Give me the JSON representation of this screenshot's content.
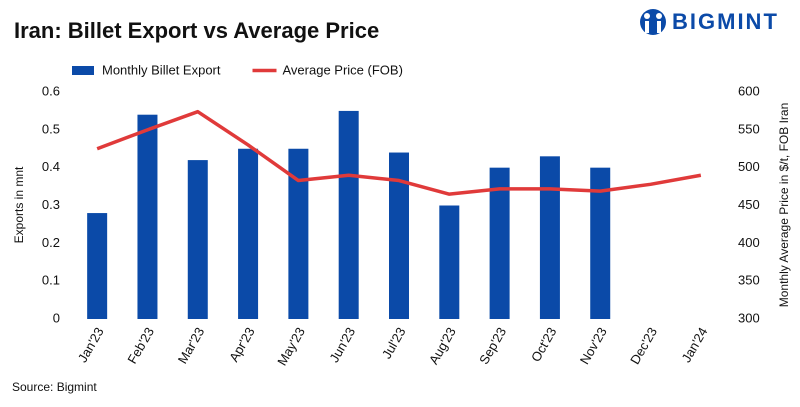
{
  "brand": "BIGMINT",
  "chart_data": {
    "type": "bar-line",
    "title": "Iran: Billet Export vs Average Price",
    "source": "Source: Bigmint",
    "y_label": "Exports in mnt",
    "y2_label": "Monthly Average Price in $/t, FOB Iran",
    "categories": [
      "Jan'23",
      "Feb'23",
      "Mar'23",
      "Apr'23",
      "May'23",
      "Jun'23",
      "Jul'23",
      "Aug'23",
      "Sep'23",
      "Oct'23",
      "Nov'23",
      "Dec'23",
      "Jan'24"
    ],
    "series": [
      {
        "name": "Monthly Billet Export",
        "type": "bar",
        "color": "#0b4aa8",
        "values": [
          0.28,
          0.54,
          0.42,
          0.45,
          0.45,
          0.55,
          0.44,
          0.3,
          0.4,
          0.43,
          0.4,
          null,
          null
        ]
      },
      {
        "name": "Average Price (FOB)",
        "type": "line",
        "axis": "y2",
        "color": "#e03a3a",
        "values": [
          525,
          550,
          574,
          530,
          483,
          490,
          483,
          465,
          472,
          472,
          469,
          478,
          490
        ]
      }
    ],
    "ylim": [
      0,
      0.6
    ],
    "yticks": [
      0,
      0.1,
      0.2,
      0.3,
      0.4,
      0.5,
      0.6
    ],
    "y2lim": [
      300,
      600
    ],
    "y2ticks": [
      300,
      350,
      400,
      450,
      500,
      550,
      600
    ],
    "grid": false,
    "legend": "top"
  }
}
